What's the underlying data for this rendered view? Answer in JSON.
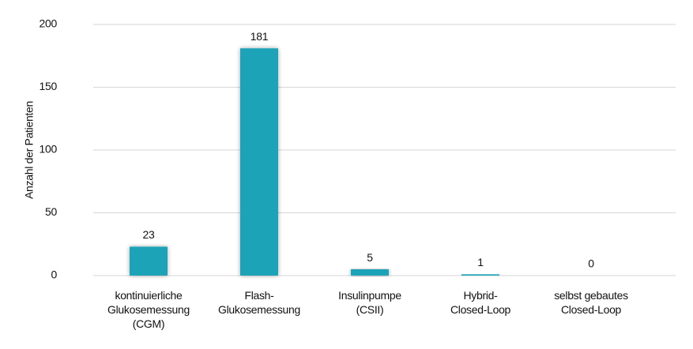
{
  "chart_data": {
    "type": "bar",
    "y_label": "Anzahl der Patienten",
    "categories": [
      [
        "kontinuierliche",
        "Glukosemessung",
        "(CGM)"
      ],
      [
        "Flash-",
        "Glukosemessung"
      ],
      [
        "Insulinpumpe",
        "(CSII)"
      ],
      [
        "Hybrid-",
        "Closed-Loop"
      ],
      [
        "selbst gebautes",
        "Closed-Loop"
      ]
    ],
    "values": [
      23,
      181,
      5,
      1,
      0
    ],
    "color": "#1aa3b8",
    "ylim": [
      0,
      200
    ],
    "yticks": [
      0,
      50,
      100,
      150,
      200
    ],
    "grid": true
  }
}
